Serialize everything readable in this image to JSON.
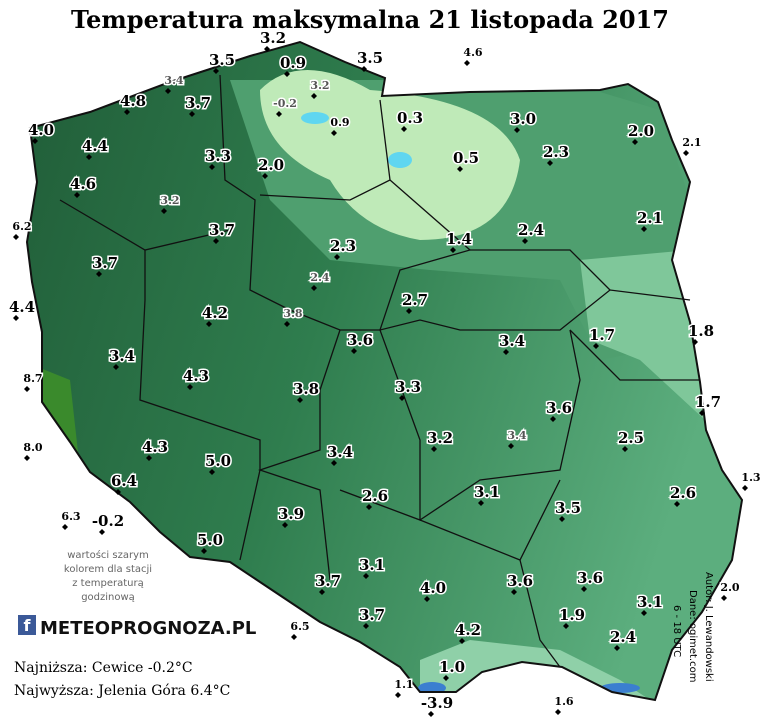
{
  "title": "Temperatura maksymalna 21 listopada 2017",
  "stations": [
    {
      "label": "3.2"
    },
    {
      "label": "3.5"
    },
    {
      "label": "0.9"
    },
    {
      "label": "3.5"
    },
    {
      "label": "4.6",
      "style": "small"
    },
    {
      "label": "3.4",
      "style": "gray"
    },
    {
      "label": "3.2",
      "style": "gray"
    },
    {
      "label": "-0.2",
      "style": "gray"
    },
    {
      "label": "0.9",
      "style": "small"
    },
    {
      "label": "4.8"
    },
    {
      "label": "3.7"
    },
    {
      "label": "4.0"
    },
    {
      "label": "0.3"
    },
    {
      "label": "3.0"
    },
    {
      "label": "2.0"
    },
    {
      "label": "2.1",
      "style": "small"
    },
    {
      "label": "4.4"
    },
    {
      "label": "3.3"
    },
    {
      "label": "2.0"
    },
    {
      "label": "0.5"
    },
    {
      "label": "2.3"
    },
    {
      "label": "4.6"
    },
    {
      "label": "3.2",
      "style": "gray"
    },
    {
      "label": "2.1"
    },
    {
      "label": "6.2",
      "style": "small"
    },
    {
      "label": "3.7"
    },
    {
      "label": "2.3"
    },
    {
      "label": "1.4"
    },
    {
      "label": "2.4"
    },
    {
      "label": "3.7"
    },
    {
      "label": "2.4",
      "style": "gray"
    },
    {
      "label": "4.4"
    },
    {
      "label": "4.2"
    },
    {
      "label": "3.8",
      "style": "gray"
    },
    {
      "label": "2.7"
    },
    {
      "label": "1.7"
    },
    {
      "label": "1.8"
    },
    {
      "label": "3.6"
    },
    {
      "label": "3.4"
    },
    {
      "label": "3.4"
    },
    {
      "label": "4.3"
    },
    {
      "label": "8.7",
      "style": "small"
    },
    {
      "label": "3.8"
    },
    {
      "label": "3.3"
    },
    {
      "label": "1.7"
    },
    {
      "label": "3.6"
    },
    {
      "label": "3.4",
      "style": "gray"
    },
    {
      "label": "3.2"
    },
    {
      "label": "2.5"
    },
    {
      "label": "4.3"
    },
    {
      "label": "8.0",
      "style": "small"
    },
    {
      "label": "3.4"
    },
    {
      "label": "5.0"
    },
    {
      "label": "6.4"
    },
    {
      "label": "1.3",
      "style": "small"
    },
    {
      "label": "3.1"
    },
    {
      "label": "2.6"
    },
    {
      "label": "2.6"
    },
    {
      "label": "3.5"
    },
    {
      "label": "6.3",
      "style": "small"
    },
    {
      "label": "-0.2"
    },
    {
      "label": "3.9"
    },
    {
      "label": "5.0"
    },
    {
      "label": "3.1"
    },
    {
      "label": "3.7"
    },
    {
      "label": "4.0"
    },
    {
      "label": "3.6"
    },
    {
      "label": "3.6"
    },
    {
      "label": "2.0",
      "style": "small"
    },
    {
      "label": "3.1"
    },
    {
      "label": "1.9"
    },
    {
      "label": "3.7"
    },
    {
      "label": "6.5",
      "style": "small"
    },
    {
      "label": "4.2"
    },
    {
      "label": "2.4"
    },
    {
      "label": "1.0"
    },
    {
      "label": "1.1",
      "style": "small"
    },
    {
      "label": "-3.9"
    },
    {
      "label": "1.6",
      "style": "small"
    }
  ],
  "note": [
    "wartości szarym",
    "kolorem dla stacji",
    "z temperaturą",
    "godzinową"
  ],
  "logo": "METEOPROGNOZA.PL",
  "lowest": "Najniższa: Cewice -0.2°C",
  "highest": "Najwyższa: Jelenia Góra 6.4°C",
  "credits": [
    "Autor: J. Lewandowski",
    "Dane: ogimet.com",
    "6 - 18 UTC"
  ]
}
